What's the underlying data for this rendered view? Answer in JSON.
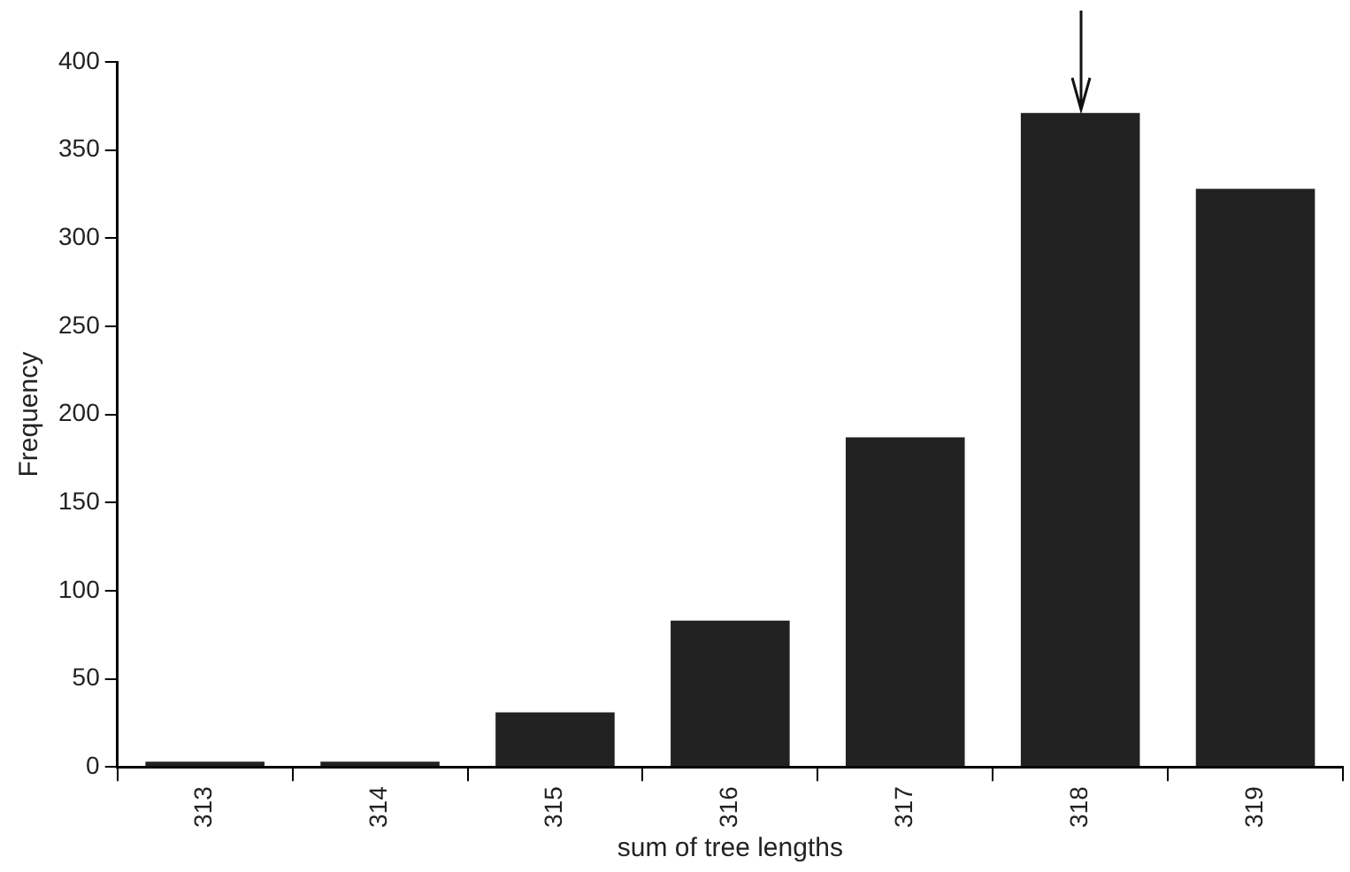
{
  "chart_data": {
    "type": "bar",
    "xlabel": "sum of tree lengths",
    "ylabel": "Frequency",
    "categories": [
      "313",
      "314",
      "315",
      "316",
      "317",
      "318",
      "319"
    ],
    "values": [
      3,
      3,
      31,
      83,
      187,
      371,
      328
    ],
    "color": "#222222",
    "ylim": [
      0,
      400
    ],
    "yticks": [
      0,
      50,
      100,
      150,
      200,
      250,
      300,
      350,
      400
    ],
    "grid": false,
    "legend": false
  }
}
